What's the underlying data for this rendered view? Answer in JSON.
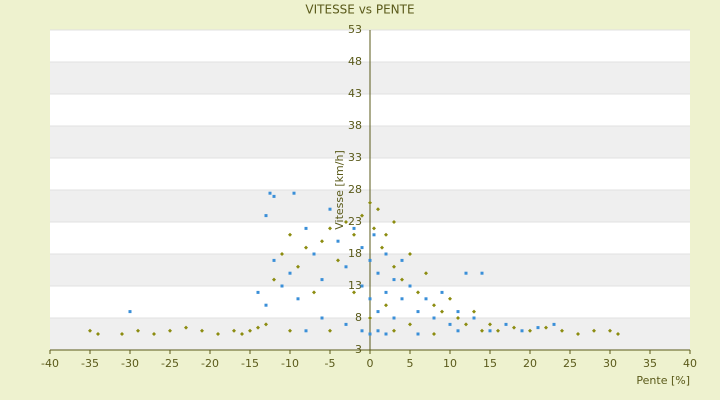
{
  "chart_data": {
    "type": "scatter",
    "title": "VITESSE vs PENTE",
    "x_label": "Pente [%]",
    "y_label": "Vitesse [km/h]",
    "xlim": [
      -40,
      40
    ],
    "xticks": [
      -40,
      -35,
      -30,
      -25,
      -20,
      -15,
      -10,
      -5,
      0,
      5,
      10,
      15,
      20,
      25,
      30,
      35,
      40
    ],
    "ylim": [
      3,
      53
    ],
    "yticks": [
      3,
      8,
      13,
      18,
      23,
      28,
      33,
      38,
      43,
      48,
      53
    ],
    "grid": true,
    "series": [
      {
        "color": "#8c8c10",
        "marker": "diamond",
        "x": [
          -35,
          -34,
          -31,
          -29,
          -27,
          -25,
          -23,
          -21,
          -19,
          -17,
          -16,
          -15,
          -14,
          -13,
          -12,
          -11,
          -10,
          -9,
          -8,
          -7,
          -6,
          -5,
          -4,
          -3,
          -2,
          -1,
          0,
          0.5,
          1,
          1.5,
          2,
          3,
          3,
          4,
          5,
          6,
          7,
          8,
          9,
          10,
          11,
          12,
          13,
          14,
          15,
          16,
          18,
          20,
          22,
          24,
          26,
          28,
          30,
          31,
          -5,
          3,
          8,
          -10,
          0,
          2,
          -2,
          5
        ],
        "values": [
          6,
          5.5,
          5.5,
          6,
          5.5,
          6,
          6.5,
          6,
          5.5,
          6,
          5.5,
          6,
          6.5,
          7,
          14,
          18,
          21,
          16,
          19,
          12,
          20,
          22,
          17,
          23,
          21,
          24,
          26,
          22,
          25,
          19,
          21,
          16,
          23,
          14,
          18,
          12,
          15,
          10,
          9,
          11,
          8,
          7,
          9,
          6,
          7,
          6,
          6.5,
          6,
          6.5,
          6,
          5.5,
          6,
          6,
          5.5,
          6,
          6,
          5.5,
          6,
          8,
          10,
          12,
          7
        ]
      },
      {
        "color": "#3a8fd8",
        "marker": "square",
        "x": [
          -30,
          -13,
          -12.5,
          -12,
          -9.5,
          -14,
          -13,
          -12,
          -11,
          -10,
          -9,
          -8,
          -7,
          -6,
          -5,
          -4,
          -3,
          -2,
          -1,
          -1,
          0,
          0,
          0.5,
          1,
          1,
          2,
          2,
          3,
          3,
          4,
          4,
          5,
          6,
          7,
          8,
          9,
          10,
          11,
          12,
          13,
          14,
          15,
          17,
          19,
          21,
          23,
          -1,
          0,
          1,
          2,
          -3,
          6,
          -6,
          -8,
          11
        ],
        "values": [
          9,
          24,
          27.5,
          27,
          27.5,
          12,
          10,
          17,
          13,
          15,
          11,
          22,
          18,
          14,
          25,
          20,
          16,
          22,
          19,
          13,
          17,
          11,
          21,
          15,
          9,
          18,
          12,
          14,
          8,
          11,
          17,
          13,
          9,
          11,
          8,
          12,
          7,
          9,
          15,
          8,
          15,
          6,
          7,
          6,
          6.5,
          7,
          6,
          5.5,
          6,
          5.5,
          7,
          5.5,
          8,
          6,
          6
        ]
      }
    ]
  }
}
